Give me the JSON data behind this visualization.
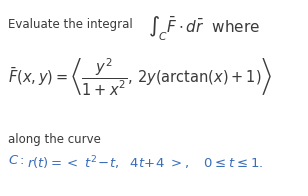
{
  "background_color": "#ffffff",
  "line1_plain": "Evaluate the integral",
  "line1_math": "$\\int_C \\bar{F}\\cdot d\\bar{r}$  where",
  "line2_math": "$\\bar{F}(x,y)=\\left\\langle \\dfrac{y^2}{1+x^2},\\, 2y(\\mathrm{arctan}(x)+1)\\right\\rangle$",
  "line3_plain": "along the curve",
  "line4_text": "C: ",
  "line4_math": "$\\mathit{r}(t) = <\\ t^2\\!-\\!t,\\ \\ 4t\\!+\\!4\\ >,\\quad 0\\leq t\\leq 1.$",
  "text_color": "#3a3a3a",
  "math_color": "#4a6fa5",
  "blue_color": "#3a6eba",
  "font_size_small": 8.5,
  "font_size_integral": 11,
  "font_size_line2": 10.5,
  "font_size_line4": 9.5
}
